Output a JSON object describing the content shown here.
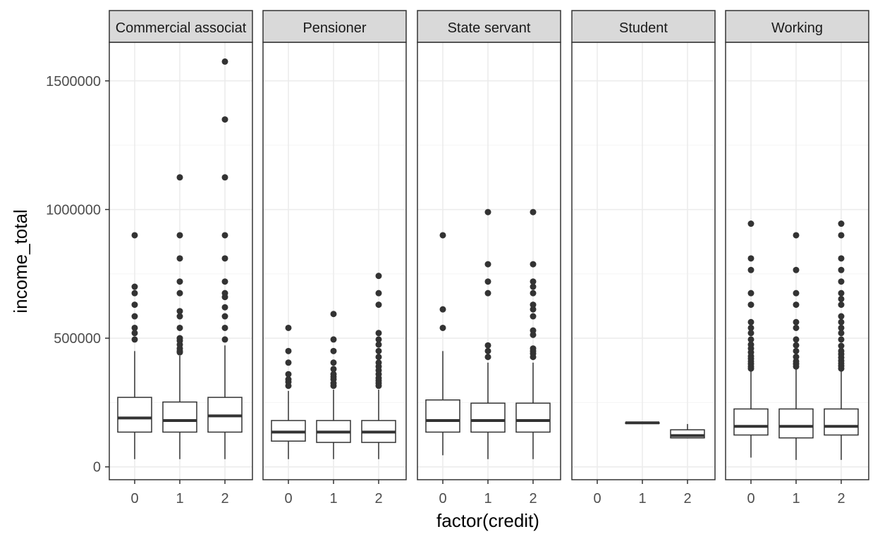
{
  "chart_data": {
    "type": "boxplot",
    "facet_by": "occupation",
    "xlabel": "factor(credit)",
    "ylabel": "income_total",
    "categories": [
      "0",
      "1",
      "2"
    ],
    "ylim": [
      -50000,
      1650000
    ],
    "y_ticks": [
      0,
      500000,
      1000000,
      1500000
    ],
    "y_tick_labels": [
      "0",
      "500000",
      "1000000",
      "1500000"
    ],
    "grid": true,
    "panels": [
      {
        "name": "Commercial associat",
        "boxes": [
          {
            "x": "0",
            "low": 30000,
            "q1": 135000,
            "median": 190000,
            "q3": 270000,
            "high": 450000,
            "outliers": [
              495000,
              520000,
              540000,
              585000,
              630000,
              675000,
              700000,
              900000
            ]
          },
          {
            "x": "1",
            "low": 30000,
            "q1": 135000,
            "median": 180000,
            "q3": 252000,
            "high": 432000,
            "outliers": [
              445000,
              450000,
              460000,
              475000,
              490000,
              500000,
              540000,
              585000,
              605000,
              675000,
              720000,
              810000,
              900000,
              1125000
            ]
          },
          {
            "x": "2",
            "low": 30000,
            "q1": 135000,
            "median": 198000,
            "q3": 270000,
            "high": 472000,
            "outliers": [
              495000,
              540000,
              585000,
              620000,
              660000,
              675000,
              720000,
              810000,
              900000,
              1125000,
              1350000,
              1575000
            ]
          }
        ]
      },
      {
        "name": "Pensioner",
        "boxes": [
          {
            "x": "0",
            "low": 30000,
            "q1": 100000,
            "median": 135000,
            "q3": 180000,
            "high": 295000,
            "outliers": [
              315000,
              330000,
              340000,
              360000,
              405000,
              450000,
              540000
            ]
          },
          {
            "x": "1",
            "low": 30000,
            "q1": 95000,
            "median": 135000,
            "q3": 180000,
            "high": 300000,
            "outliers": [
              315000,
              325000,
              340000,
              350000,
              360000,
              380000,
              405000,
              450000,
              495000,
              594000
            ]
          },
          {
            "x": "2",
            "low": 30000,
            "q1": 95000,
            "median": 135000,
            "q3": 180000,
            "high": 300000,
            "outliers": [
              315000,
              325000,
              335000,
              345000,
              360000,
              375000,
              390000,
              405000,
              427000,
              450000,
              475000,
              495000,
              520000,
              630000,
              675000,
              742000
            ]
          }
        ]
      },
      {
        "name": "State servant",
        "boxes": [
          {
            "x": "0",
            "low": 45000,
            "q1": 135000,
            "median": 180000,
            "q3": 260000,
            "high": 450000,
            "outliers": [
              540000,
              612000,
              900000
            ]
          },
          {
            "x": "1",
            "low": 30000,
            "q1": 135000,
            "median": 180000,
            "q3": 247500,
            "high": 405000,
            "outliers": [
              427000,
              450000,
              472000,
              675000,
              720000,
              787500,
              990000
            ]
          },
          {
            "x": "2",
            "low": 30000,
            "q1": 135000,
            "median": 180000,
            "q3": 247500,
            "high": 405000,
            "outliers": [
              427000,
              440000,
              450000,
              460000,
              513000,
              530000,
              585000,
              612000,
              630000,
              675000,
              700000,
              720000,
              787500,
              990000
            ]
          }
        ]
      },
      {
        "name": "Student",
        "boxes": [
          {
            "x": "1",
            "low": 171000,
            "q1": 171000,
            "median": 171000,
            "q3": 171000,
            "high": 171000,
            "outliers": []
          },
          {
            "x": "2",
            "low": 112500,
            "q1": 112500,
            "median": 121500,
            "q3": 144000,
            "high": 166500,
            "outliers": []
          }
        ]
      },
      {
        "name": "Working",
        "boxes": [
          {
            "x": "0",
            "low": 36000,
            "q1": 123750,
            "median": 157500,
            "q3": 225000,
            "high": 378000,
            "outliers": [
              382000,
              390000,
              400000,
              410000,
              420000,
              430000,
              445000,
              460000,
              475000,
              495000,
              520000,
              540000,
              562500,
              630000,
              675000,
              765000,
              810000,
              945000
            ]
          },
          {
            "x": "1",
            "low": 27000,
            "q1": 112500,
            "median": 157500,
            "q3": 225000,
            "high": 382500,
            "outliers": [
              390000,
              400000,
              410000,
              427500,
              450000,
              472500,
              495000,
              540000,
              562500,
              630000,
              675000,
              765000,
              900000
            ]
          },
          {
            "x": "2",
            "low": 27000,
            "q1": 123750,
            "median": 157500,
            "q3": 225000,
            "high": 378000,
            "outliers": [
              382000,
              392000,
              402000,
              412000,
              425000,
              438000,
              450000,
              470000,
              495000,
              520000,
              540000,
              562500,
              585000,
              630000,
              652500,
              675000,
              720000,
              765000,
              810000,
              900000,
              945000
            ]
          }
        ]
      }
    ],
    "colors": {
      "box_fill": "#ffffff",
      "box_line": "#333333",
      "outlier": "#333333",
      "grid_major": "#ebebeb",
      "grid_minor": "#f5f5f5",
      "panel_border": "#333333",
      "strip_fill": "#d9d9d9"
    }
  }
}
